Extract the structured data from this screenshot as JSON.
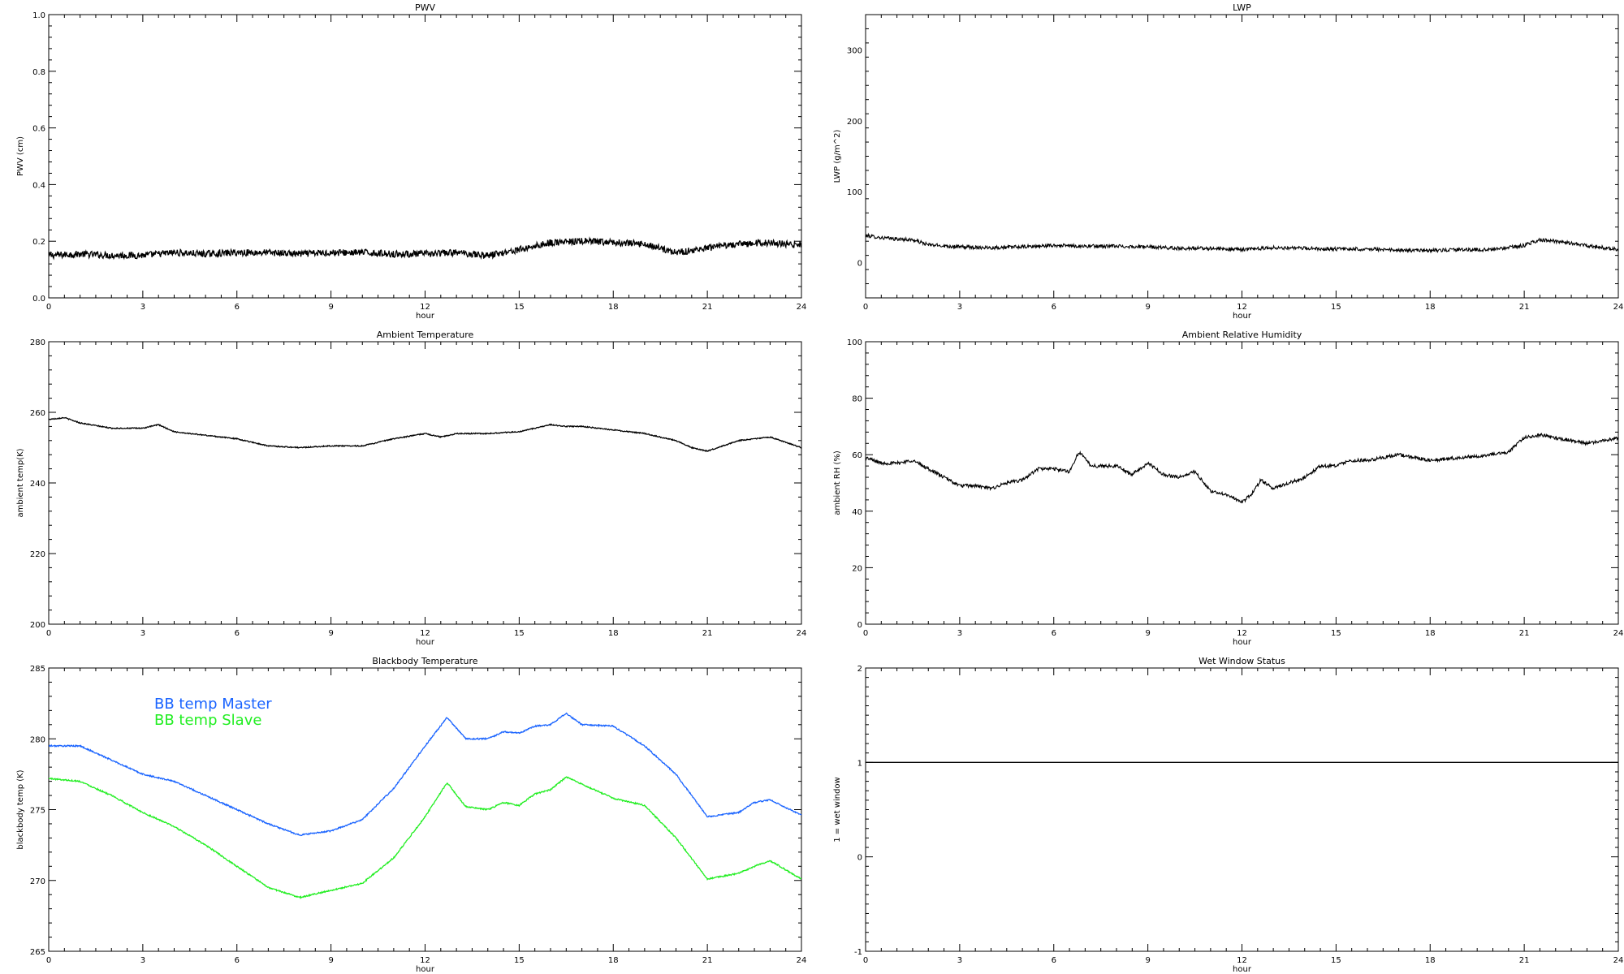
{
  "chart_data": [
    {
      "type": "line",
      "title": "PWV",
      "xlabel": "hour",
      "ylabel": "PWV (cm)",
      "xlim": [
        0,
        24
      ],
      "ylim": [
        0,
        1.0
      ],
      "xticks": [
        "0",
        "3",
        "6",
        "9",
        "12",
        "15",
        "18",
        "21",
        "24"
      ],
      "yticks": [
        "0.0",
        "0.2",
        "0.4",
        "0.6",
        "0.8",
        "1.0"
      ],
      "grid": false,
      "noise": 0.012,
      "series": [
        {
          "color": "#000000",
          "x": [
            0,
            1,
            2,
            3,
            4,
            5,
            6,
            7,
            8,
            9,
            10,
            11,
            12,
            13,
            14,
            15,
            16,
            17,
            18,
            19,
            20,
            21,
            22,
            23,
            24
          ],
          "y": [
            0.15,
            0.155,
            0.15,
            0.15,
            0.16,
            0.155,
            0.16,
            0.16,
            0.155,
            0.16,
            0.16,
            0.155,
            0.155,
            0.16,
            0.15,
            0.17,
            0.195,
            0.2,
            0.195,
            0.19,
            0.16,
            0.175,
            0.19,
            0.195,
            0.185
          ]
        }
      ]
    },
    {
      "type": "line",
      "title": "LWP",
      "xlabel": "hour",
      "ylabel": "LWP (g/m^2)",
      "xlim": [
        0,
        24
      ],
      "ylim": [
        -50,
        350
      ],
      "xticks": [
        "0",
        "3",
        "6",
        "9",
        "12",
        "15",
        "18",
        "21",
        "24"
      ],
      "yticks": [
        "0",
        "100",
        "200",
        "300"
      ],
      "grid": false,
      "noise": 2.5,
      "series": [
        {
          "color": "#000000",
          "x": [
            0,
            0.5,
            1,
            1.5,
            2,
            3,
            4,
            5,
            6,
            7,
            8,
            9,
            10,
            11,
            12,
            13,
            14,
            15,
            16,
            17,
            18,
            19,
            20,
            21,
            21.5,
            22,
            23,
            24
          ],
          "y": [
            38,
            35,
            33,
            32,
            25,
            22,
            21,
            22,
            24,
            23,
            23,
            22,
            20,
            20,
            18,
            21,
            20,
            19,
            19,
            17,
            17,
            18,
            18,
            24,
            32,
            30,
            24,
            18
          ]
        }
      ]
    },
    {
      "type": "line",
      "title": "Ambient Temperature",
      "xlabel": "hour",
      "ylabel": "ambient temp(K)",
      "xlim": [
        0,
        24
      ],
      "ylim": [
        200,
        280
      ],
      "xticks": [
        "0",
        "3",
        "6",
        "9",
        "12",
        "15",
        "18",
        "21",
        "24"
      ],
      "yticks": [
        "200",
        "220",
        "240",
        "260",
        "280"
      ],
      "grid": false,
      "noise": 0.15,
      "series": [
        {
          "color": "#000000",
          "x": [
            0,
            0.5,
            1,
            2,
            3,
            3.5,
            4,
            5,
            6,
            7,
            8,
            9,
            10,
            11,
            12,
            12.5,
            13,
            14,
            15,
            16,
            16.5,
            17,
            18,
            19,
            20,
            20.5,
            21,
            22,
            23,
            24
          ],
          "y": [
            258,
            258.5,
            257,
            255.5,
            255.5,
            256.5,
            254.5,
            253.5,
            252.5,
            250.5,
            250,
            250.5,
            250.5,
            252.5,
            254,
            253,
            254,
            254,
            254.5,
            256.5,
            256,
            256,
            255,
            254,
            252,
            250,
            249,
            252,
            253,
            250
          ]
        }
      ]
    },
    {
      "type": "line",
      "title": "Ambient Relative Humidity",
      "xlabel": "hour",
      "ylabel": "ambient RH (%)",
      "xlim": [
        0,
        24
      ],
      "ylim": [
        0,
        100
      ],
      "xticks": [
        "0",
        "3",
        "6",
        "9",
        "12",
        "15",
        "18",
        "21",
        "24"
      ],
      "yticks": [
        "0",
        "20",
        "40",
        "60",
        "80",
        "100"
      ],
      "grid": false,
      "noise": 0.6,
      "series": [
        {
          "color": "#000000",
          "x": [
            0,
            0.5,
            1,
            1.5,
            2,
            2.5,
            3,
            3.5,
            4,
            4.5,
            5,
            5.5,
            6,
            6.5,
            6.8,
            7.2,
            8,
            8.5,
            9,
            9.5,
            10,
            10.5,
            11,
            11.5,
            12,
            12.3,
            12.6,
            13,
            13.5,
            14,
            14.5,
            15,
            15.5,
            16,
            17,
            18,
            19,
            20,
            20.5,
            21,
            21.5,
            22,
            23,
            24
          ],
          "y": [
            59,
            57,
            57,
            58,
            55,
            52,
            49,
            49,
            48,
            50,
            51,
            55,
            55,
            54,
            61,
            56,
            56,
            53,
            57,
            53,
            52,
            54,
            47,
            46,
            43,
            46,
            51,
            48,
            50,
            52,
            56,
            56,
            58,
            58,
            60,
            58,
            59,
            60,
            61,
            66,
            67,
            66,
            64,
            66
          ]
        }
      ]
    },
    {
      "type": "line",
      "title": "Blackbody Temperature",
      "xlabel": "hour",
      "ylabel": "blackbody temp (K)",
      "xlim": [
        0,
        24
      ],
      "ylim": [
        265,
        285
      ],
      "xticks": [
        "0",
        "3",
        "6",
        "9",
        "12",
        "15",
        "18",
        "21",
        "24"
      ],
      "yticks": [
        "265",
        "270",
        "275",
        "280",
        "285"
      ],
      "grid": false,
      "legend": "top-left",
      "noise": 0.05,
      "series": [
        {
          "name": "BB temp Master",
          "color": "#1a64ff",
          "x": [
            0,
            1,
            2,
            3,
            4,
            5,
            6,
            7,
            8,
            9,
            10,
            11,
            12,
            12.7,
            13.3,
            14,
            14.5,
            15,
            15.5,
            16,
            16.5,
            17,
            18,
            19,
            20,
            21,
            22,
            22.5,
            23,
            24
          ],
          "y": [
            279.5,
            279.5,
            278.5,
            277.5,
            277,
            276,
            275,
            274,
            273.2,
            273.5,
            274.3,
            276.5,
            279.5,
            281.5,
            280,
            280,
            280.5,
            280.4,
            280.9,
            281,
            281.8,
            281,
            280.9,
            279.5,
            277.5,
            274.5,
            274.8,
            275.5,
            275.7,
            274.6
          ]
        },
        {
          "name": "BB temp Slave",
          "color": "#22ee22",
          "x": [
            0,
            1,
            2,
            3,
            4,
            5,
            6,
            7,
            8,
            9,
            10,
            11,
            12,
            12.7,
            13.3,
            14,
            14.5,
            15,
            15.5,
            16,
            16.5,
            17,
            18,
            19,
            20,
            21,
            22,
            22.5,
            23,
            24
          ],
          "y": [
            277.2,
            277,
            276,
            274.8,
            273.8,
            272.5,
            271,
            269.5,
            268.8,
            269.3,
            269.8,
            271.6,
            274.5,
            276.9,
            275.2,
            275,
            275.5,
            275.3,
            276.1,
            276.4,
            277.3,
            276.8,
            275.8,
            275.3,
            273,
            270.1,
            270.5,
            271,
            271.4,
            270.1
          ]
        }
      ]
    },
    {
      "type": "line",
      "title": "Wet Window Status",
      "xlabel": "hour",
      "ylabel": "1 = wet window",
      "xlim": [
        0,
        24
      ],
      "ylim": [
        -1,
        2
      ],
      "xticks": [
        "0",
        "3",
        "6",
        "9",
        "12",
        "15",
        "18",
        "21",
        "24"
      ],
      "yticks": [
        "-1",
        "0",
        "1",
        "2"
      ],
      "grid": false,
      "noise": 0,
      "series": [
        {
          "color": "#000000",
          "x": [
            0,
            24
          ],
          "y": [
            1,
            1
          ]
        }
      ]
    }
  ]
}
